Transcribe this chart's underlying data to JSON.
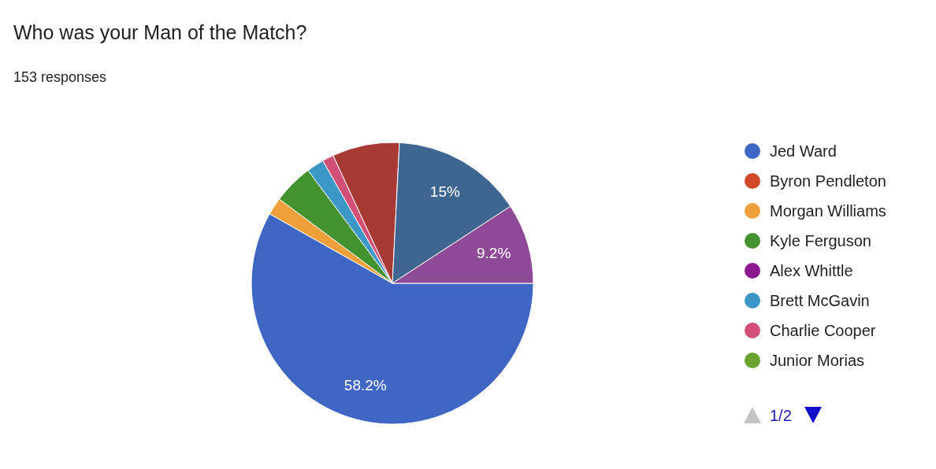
{
  "chart_data": {
    "type": "pie",
    "title": "Who was your Man of the Match?",
    "subtitle": "153 responses",
    "categories": [
      "Jed Ward",
      "Byron Pendleton",
      "Morgan Williams",
      "Kyle Ferguson",
      "Alex Whittle",
      "Brett McGavin",
      "Charlie Cooper",
      "Junior Morias",
      null,
      null,
      null
    ],
    "values": [
      58.2,
      0,
      2,
      4.6,
      0,
      2,
      1.3,
      0,
      7.7,
      15,
      9.2
    ],
    "colors": [
      "#4066c4",
      "#d04a2a",
      "#f0a03a",
      "#43922f",
      "#8b1a8f",
      "#3c97c6",
      "#d24f78",
      "#6aa330",
      "#a83a35",
      "#3f6591",
      "#8f4a97"
    ],
    "value_labels": [
      "58.2%",
      null,
      null,
      null,
      null,
      null,
      null,
      null,
      null,
      "15%",
      "9.2%"
    ],
    "legend": "right",
    "annotations": [
      "1/2"
    ]
  }
}
